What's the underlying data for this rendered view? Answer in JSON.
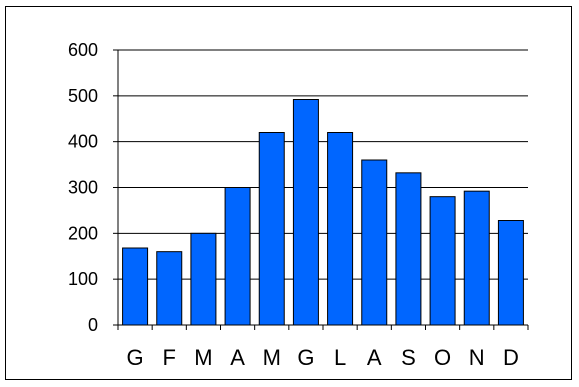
{
  "chart_data": {
    "type": "bar",
    "categories": [
      "G",
      "F",
      "M",
      "A",
      "M",
      "G",
      "L",
      "A",
      "S",
      "O",
      "N",
      "D"
    ],
    "values": [
      168,
      160,
      200,
      300,
      420,
      492,
      420,
      360,
      332,
      280,
      292,
      228
    ],
    "title": "",
    "xlabel": "",
    "ylabel": "",
    "ylim": [
      0,
      600
    ],
    "yticks": [
      0,
      100,
      200,
      300,
      400,
      500,
      600
    ],
    "grid": true,
    "legend": "none",
    "bar_color": "#0066FF",
    "bar_stroke": "#000000"
  }
}
